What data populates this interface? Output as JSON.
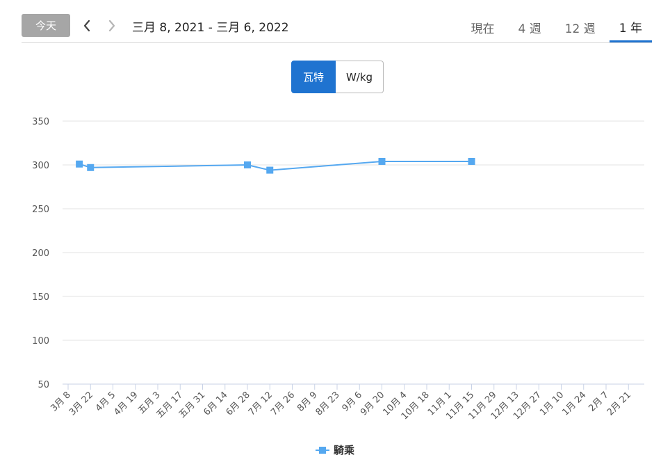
{
  "toolbar": {
    "today_label": "今天",
    "date_range": "三月 8, 2021 - 三月 6, 2022"
  },
  "range_tabs": [
    {
      "label": "現在",
      "active": false
    },
    {
      "label": "4 週",
      "active": false
    },
    {
      "label": "12 週",
      "active": false
    },
    {
      "label": "1 年",
      "active": true
    }
  ],
  "unit_toggle": {
    "watts_label": "瓦特",
    "wkg_label": "W/kg",
    "selected": "watts"
  },
  "colors": {
    "accent": "#1f73d0",
    "series": "#55a8f0"
  },
  "chart_data": {
    "type": "line",
    "title": "",
    "xlabel": "",
    "ylabel": "",
    "ylim": [
      50,
      350
    ],
    "yticks": [
      50,
      100,
      150,
      200,
      250,
      300,
      350
    ],
    "grid": true,
    "legend": "bottom-center",
    "categories": [
      "3月 8",
      "3月 22",
      "4月 5",
      "4月 19",
      "五月 3",
      "五月 17",
      "五月 31",
      "6月 14",
      "6月 28",
      "7月 12",
      "7月 26",
      "8月 9",
      "8月 23",
      "9月 6",
      "9月 20",
      "10月 4",
      "10月 18",
      "11月 1",
      "11月 15",
      "11月 29",
      "12月 13",
      "12月 27",
      "1月 10",
      "1月 24",
      "2月 7",
      "2月 21"
    ],
    "series": [
      {
        "name": "騎乘",
        "points": [
          {
            "x": 0.5,
            "y": 301
          },
          {
            "x": 1.0,
            "y": 297
          },
          {
            "x": 8.0,
            "y": 300
          },
          {
            "x": 9.0,
            "y": 294
          },
          {
            "x": 14.0,
            "y": 304
          },
          {
            "x": 18.0,
            "y": 304
          }
        ]
      }
    ]
  }
}
